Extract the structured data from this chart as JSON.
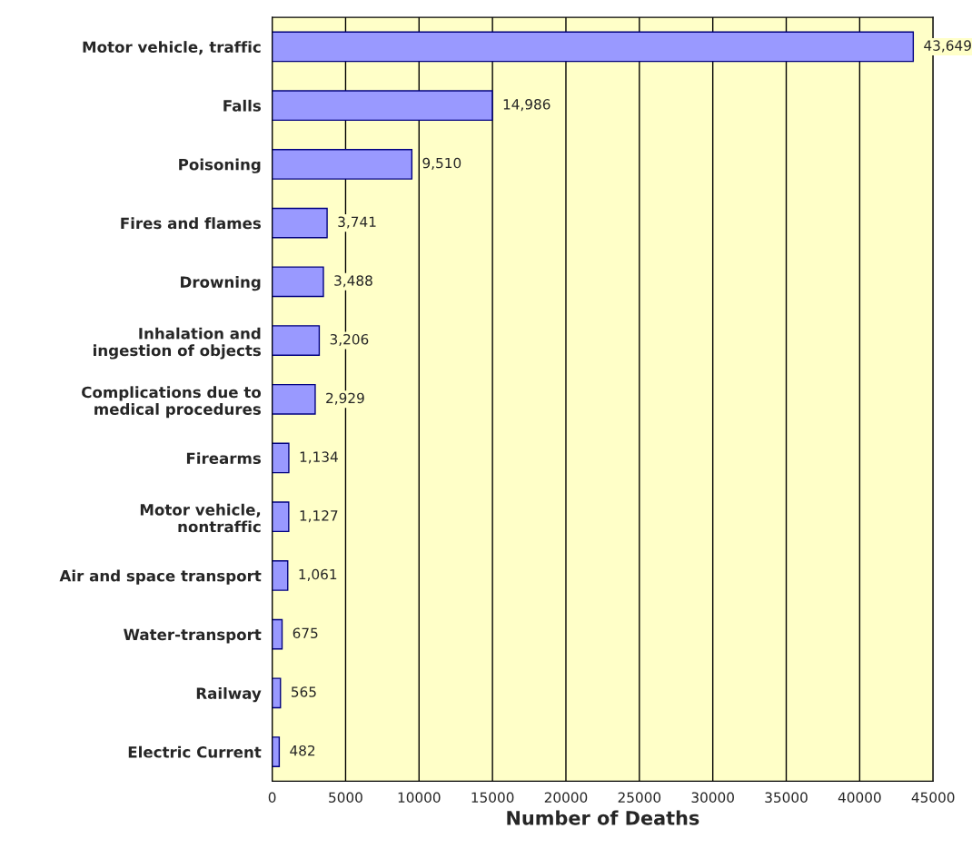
{
  "chart_data": {
    "type": "bar",
    "orientation": "horizontal",
    "categories": [
      "Motor vehicle, traffic",
      "Falls",
      "Poisoning",
      "Fires and flames",
      "Drowning",
      "Inhalation and\ningestion of objects",
      "Complications due to\nmedical procedures",
      "Firearms",
      "Motor vehicle,\nnontraffic",
      "Air and space transport",
      "Water-transport",
      "Railway",
      "Electric Current"
    ],
    "values": [
      43649,
      14986,
      9510,
      3741,
      3488,
      3206,
      2929,
      1134,
      1127,
      1061,
      675,
      565,
      482
    ],
    "value_labels": [
      "43,649",
      "14,986",
      "9,510",
      "3,741",
      "3,488",
      "3,206",
      "2,929",
      "1,134",
      "1,127",
      "1,061",
      "675",
      "565",
      "482"
    ],
    "color": "#9999ff",
    "xlabel": "Number of Deaths",
    "xlim": [
      0,
      45000
    ],
    "xticks": [
      0,
      5000,
      10000,
      15000,
      20000,
      25000,
      30000,
      35000,
      40000,
      45000
    ],
    "grid": "x"
  }
}
